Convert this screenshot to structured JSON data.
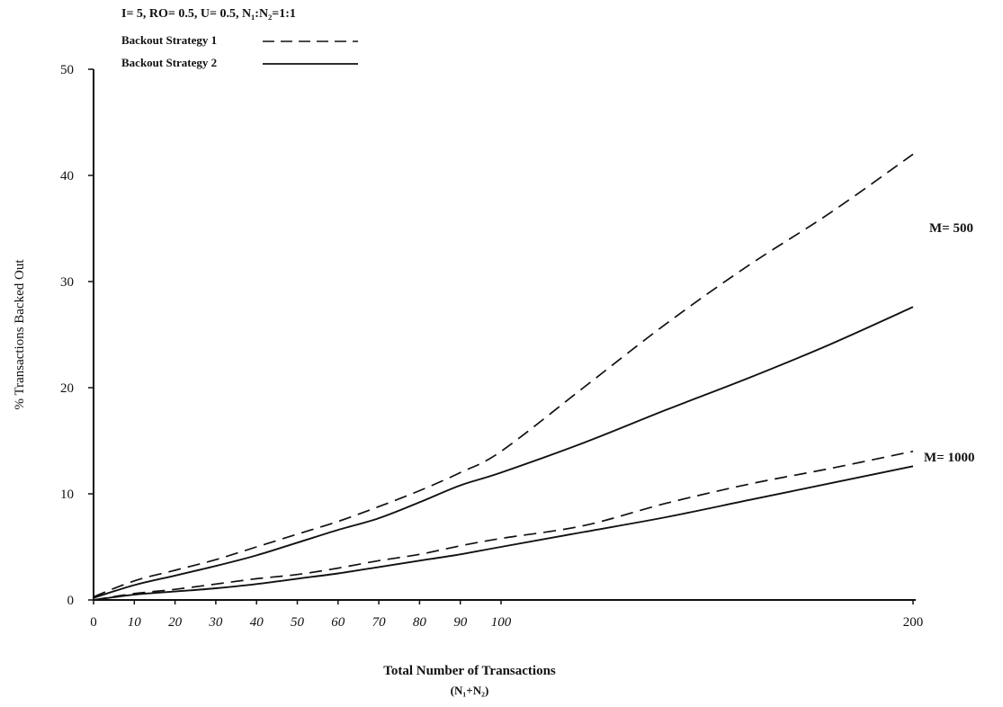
{
  "chart_data": {
    "type": "line",
    "title": "",
    "params": "I= 5,  RO= 0.5,  U= 0.5,  N₁:N₂=1:1",
    "xlabel": "Total Number of Transactions",
    "xlabel_sub": "(N₁+N₂)",
    "ylabel": "% Transactions Backed Out",
    "ylim": [
      0,
      50
    ],
    "yticks": [
      0,
      10,
      20,
      30,
      40,
      50
    ],
    "xticks": [
      0,
      10,
      20,
      30,
      40,
      50,
      60,
      70,
      80,
      90,
      100,
      200
    ],
    "x_axis_note": "non-uniform x axis: 0-100 spaced by 10, then 200 at the right end",
    "legend_position": "top-left",
    "legend": [
      {
        "label": "Backout Strategy 1",
        "style": "dashed"
      },
      {
        "label": "Backout Strategy 2",
        "style": "solid"
      }
    ],
    "annotations": [
      "M= 500",
      "M= 1000"
    ],
    "series": [
      {
        "strategy": 1,
        "group": "M= 500",
        "style": "dashed",
        "x": [
          0,
          10,
          20,
          30,
          40,
          50,
          60,
          70,
          80,
          90,
          100,
          120,
          140,
          160,
          180,
          200
        ],
        "y": [
          0.3,
          1.8,
          2.8,
          3.8,
          5.0,
          6.2,
          7.4,
          8.8,
          10.3,
          12.0,
          14.0,
          20.0,
          26.0,
          31.5,
          36.5,
          42.0
        ]
      },
      {
        "strategy": 2,
        "group": "M= 500",
        "style": "solid",
        "x": [
          0,
          10,
          20,
          30,
          40,
          50,
          60,
          70,
          80,
          90,
          100,
          120,
          140,
          160,
          180,
          200
        ],
        "y": [
          0.2,
          1.4,
          2.3,
          3.2,
          4.2,
          5.4,
          6.6,
          7.7,
          9.2,
          10.8,
          12.0,
          14.8,
          17.9,
          20.9,
          24.1,
          27.6
        ]
      },
      {
        "strategy": 1,
        "group": "M= 1000",
        "style": "dashed",
        "x": [
          0,
          10,
          20,
          30,
          40,
          50,
          60,
          70,
          80,
          90,
          100,
          120,
          140,
          160,
          180,
          200
        ],
        "y": [
          0.0,
          0.6,
          1.0,
          1.5,
          2.0,
          2.4,
          3.0,
          3.7,
          4.3,
          5.1,
          5.8,
          7.0,
          9.1,
          10.9,
          12.4,
          14.0
        ]
      },
      {
        "strategy": 2,
        "group": "M= 1000",
        "style": "solid",
        "x": [
          0,
          10,
          20,
          30,
          40,
          50,
          60,
          70,
          80,
          90,
          100,
          120,
          140,
          160,
          180,
          200
        ],
        "y": [
          0.0,
          0.5,
          0.8,
          1.1,
          1.5,
          2.0,
          2.5,
          3.1,
          3.7,
          4.3,
          5.0,
          6.4,
          7.8,
          9.4,
          11.0,
          12.6
        ]
      }
    ]
  }
}
